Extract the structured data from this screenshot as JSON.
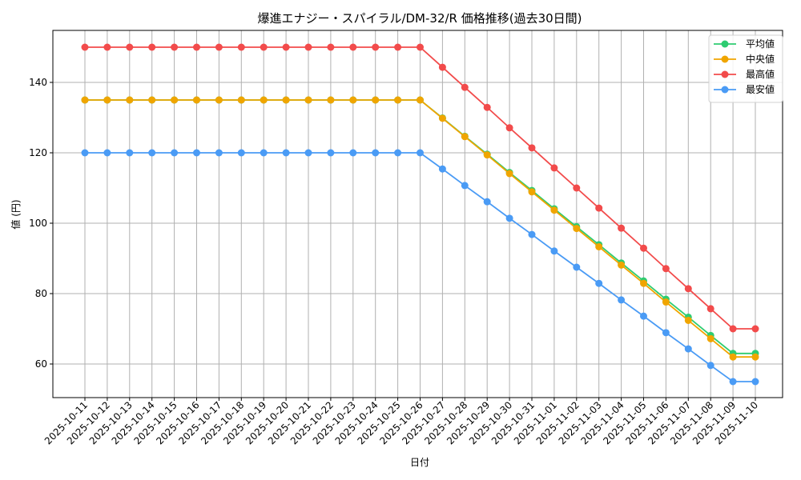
{
  "chart_data": {
    "type": "line",
    "title": "爆進エナジー・スパイラル/DM-32/R 価格推移(過去30日間)",
    "xlabel": "日付",
    "ylabel": "値 (円)",
    "ylim": [
      50,
      155
    ],
    "yticks": [
      60,
      80,
      100,
      120,
      140
    ],
    "grid": true,
    "legend_position": "upper right",
    "categories": [
      "2025-10-11",
      "2025-10-12",
      "2025-10-13",
      "2025-10-14",
      "2025-10-15",
      "2025-10-16",
      "2025-10-17",
      "2025-10-18",
      "2025-10-19",
      "2025-10-20",
      "2025-10-21",
      "2025-10-22",
      "2025-10-23",
      "2025-10-24",
      "2025-10-25",
      "2025-10-26",
      "2025-10-27",
      "2025-10-28",
      "2025-10-29",
      "2025-10-30",
      "2025-10-31",
      "2025-11-01",
      "2025-11-02",
      "2025-11-03",
      "2025-11-04",
      "2025-11-05",
      "2025-11-06",
      "2025-11-07",
      "2025-11-08",
      "2025-11-09",
      "2025-11-10"
    ],
    "series": [
      {
        "name": "平均値",
        "color": "#2ecc71",
        "values": [
          135,
          135,
          135,
          135,
          135,
          135,
          135,
          135,
          135,
          135,
          135,
          135,
          135,
          135,
          135,
          135,
          129.9,
          124.7,
          119.6,
          114.4,
          109.3,
          104.1,
          99.0,
          93.9,
          88.7,
          83.6,
          78.4,
          73.3,
          68.1,
          63,
          63
        ]
      },
      {
        "name": "中央値",
        "color": "#f0a500",
        "values": [
          135,
          135,
          135,
          135,
          135,
          135,
          135,
          135,
          135,
          135,
          135,
          135,
          135,
          135,
          135,
          135,
          129.8,
          124.6,
          119.4,
          114.1,
          108.9,
          103.7,
          98.5,
          93.3,
          88.1,
          82.9,
          77.6,
          72.4,
          67.2,
          62,
          62
        ]
      },
      {
        "name": "最高値",
        "color": "#f24b4b",
        "values": [
          150,
          150,
          150,
          150,
          150,
          150,
          150,
          150,
          150,
          150,
          150,
          150,
          150,
          150,
          150,
          150,
          144.3,
          138.6,
          132.9,
          127.1,
          121.4,
          115.7,
          110.0,
          104.3,
          98.6,
          92.9,
          87.1,
          81.4,
          75.7,
          70,
          70
        ]
      },
      {
        "name": "最安値",
        "color": "#4a9bf5",
        "values": [
          120,
          120,
          120,
          120,
          120,
          120,
          120,
          120,
          120,
          120,
          120,
          120,
          120,
          120,
          120,
          120,
          115.4,
          110.7,
          106.1,
          101.4,
          96.8,
          92.1,
          87.5,
          82.9,
          78.2,
          73.6,
          68.9,
          64.3,
          59.6,
          55,
          55
        ]
      }
    ]
  }
}
